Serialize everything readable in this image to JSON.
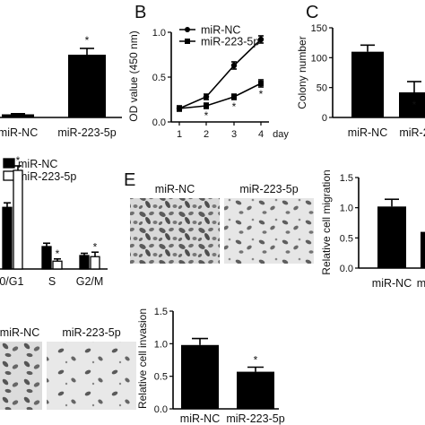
{
  "panel_letters": {
    "b": "B",
    "c": "C",
    "e": "E"
  },
  "units": {
    "day": "day"
  },
  "microscopy": {
    "panel_e": [
      "miR-NC",
      "miR-223-5p"
    ],
    "panel_f": [
      "miR-NC",
      "miR-223-5p"
    ]
  },
  "colors": {
    "bar": "#000000",
    "open_bar": "#ffffff",
    "line": "#000000"
  },
  "chart_data": [
    {
      "id": "panel-a",
      "type": "bar",
      "categories": [
        "miR-NC",
        "miR-223-5p"
      ],
      "values": [
        0.05,
        1.0
      ],
      "errors": [
        0.01,
        0.1
      ],
      "significance": [
        "",
        "*"
      ]
    },
    {
      "id": "panel-b",
      "type": "line",
      "title": "",
      "ylabel": "OD value (450 nm)",
      "ylim": [
        0,
        1.0
      ],
      "yticks": [
        "0.0",
        "0.5",
        "1.0"
      ],
      "x": [
        1,
        2,
        3,
        4
      ],
      "xticks": [
        "1",
        "2",
        "3",
        "4"
      ],
      "series": [
        {
          "name": "miR-NC",
          "marker": "circle",
          "values": [
            0.15,
            0.28,
            0.63,
            0.92
          ],
          "errors": [
            0.03,
            0.03,
            0.04,
            0.04
          ]
        },
        {
          "name": "miR-223-5p",
          "marker": "square",
          "values": [
            0.15,
            0.18,
            0.28,
            0.43
          ],
          "errors": [
            0.02,
            0.03,
            0.03,
            0.04
          ],
          "significance": [
            "",
            "*",
            "*",
            "*"
          ]
        }
      ]
    },
    {
      "id": "panel-c",
      "type": "bar",
      "ylabel": "Colony number",
      "ylim": [
        0,
        150
      ],
      "yticks": [
        "0",
        "50",
        "100",
        "150"
      ],
      "categories": [
        "miR-NC",
        "miR-2"
      ],
      "values": [
        110,
        42
      ],
      "errors": [
        11,
        18
      ],
      "significance": [
        "",
        "*"
      ]
    },
    {
      "id": "panel-d",
      "type": "bar",
      "categories": [
        "G0/G1",
        "S",
        "G2/M"
      ],
      "series": [
        {
          "name": "miR-NC",
          "fill": "solid",
          "values": [
            0.55,
            0.2,
            0.12
          ],
          "errors": [
            0.04,
            0.03,
            0.02
          ]
        },
        {
          "name": "miR-223-5p",
          "fill": "open",
          "values": [
            0.88,
            0.07,
            0.11
          ],
          "errors": [
            0.04,
            0.02,
            0.04
          ],
          "significance": [
            "*",
            "*",
            "*"
          ]
        }
      ]
    },
    {
      "id": "panel-e-graph",
      "type": "bar",
      "ylabel": "Relative cell migration",
      "ylim": [
        0,
        1.5
      ],
      "yticks": [
        "0.0",
        "0.5",
        "1.0",
        "1.5"
      ],
      "categories": [
        "miR-NC",
        "m"
      ],
      "values": [
        1.02,
        0.6
      ],
      "errors": [
        0.12,
        0.0
      ]
    },
    {
      "id": "panel-f-graph",
      "type": "bar",
      "ylabel": "Relative cell invasion",
      "ylim": [
        0,
        1.5
      ],
      "yticks": [
        "0.0",
        "0.5",
        "1.0",
        "1.5"
      ],
      "categories": [
        "miR-NC",
        "miR-223-5p"
      ],
      "values": [
        0.98,
        0.57
      ],
      "errors": [
        0.1,
        0.07
      ],
      "significance": [
        "",
        "*"
      ]
    }
  ]
}
